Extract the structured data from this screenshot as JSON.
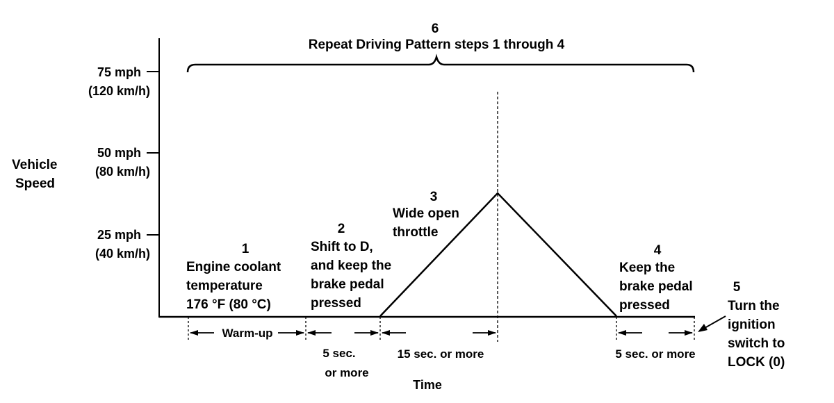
{
  "y_axis": {
    "label_line1": "Vehicle",
    "label_line2": "Speed",
    "ticks": [
      {
        "mph": "75 mph",
        "kmh": "(120 km/h)"
      },
      {
        "mph": "50 mph",
        "kmh": "(80 km/h)"
      },
      {
        "mph": "25 mph",
        "kmh": "(40 km/h)"
      }
    ]
  },
  "x_axis": {
    "label": "Time"
  },
  "repeat": {
    "number": "6",
    "text": "Repeat Driving Pattern steps 1 through 4"
  },
  "steps": {
    "s1": {
      "number": "1",
      "lines": [
        "Engine coolant",
        "temperature",
        "176 °F (80 °C)"
      ]
    },
    "s2": {
      "number": "2",
      "lines": [
        "Shift to D,",
        "and keep the",
        "brake pedal",
        "pressed"
      ]
    },
    "s3": {
      "number": "3",
      "lines": [
        "Wide open",
        "throttle"
      ]
    },
    "s4": {
      "number": "4",
      "lines": [
        "Keep the",
        "brake pedal",
        "pressed"
      ]
    },
    "s5": {
      "number": "5",
      "lines": [
        "Turn the",
        "ignition",
        "switch to",
        "LOCK (0)"
      ]
    }
  },
  "durations": {
    "warmup": "Warm-up",
    "d2_line1": "5 sec.",
    "d2_line2": "or  more",
    "d3": "15 sec. or  more",
    "d4": "5 sec. or  more"
  }
}
